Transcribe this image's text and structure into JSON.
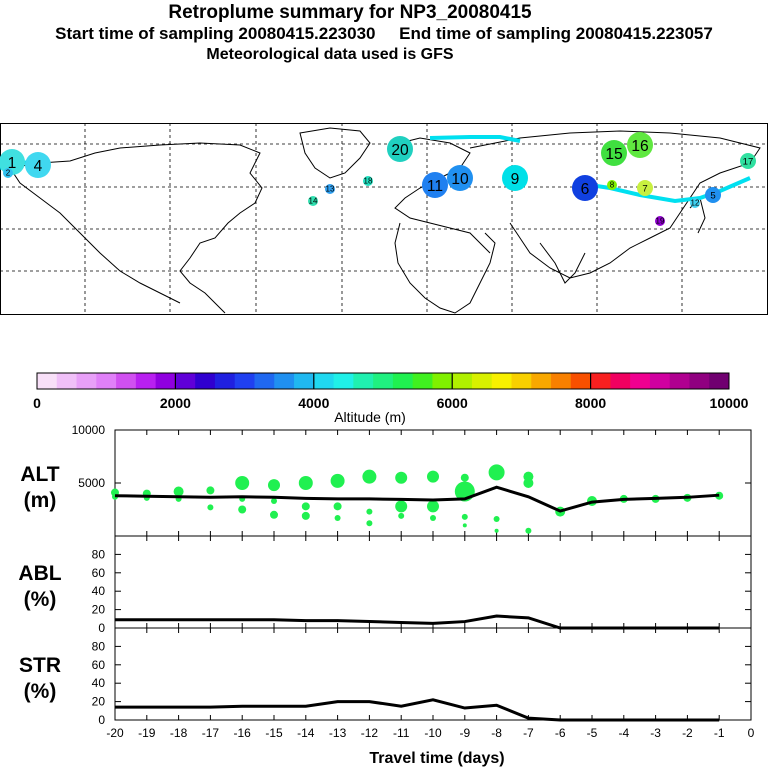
{
  "header": {
    "title": "Retroplume summary for NP3_20080415",
    "start_label": "Start time of sampling 20080415.223030",
    "end_label": "End time of sampling 20080415.223057",
    "met_label": "Meteorological data used is GFS"
  },
  "map": {
    "trajectory_color": "#00e0f0",
    "land_color": "#000000",
    "grid_color": "#000000",
    "markers": [
      {
        "label": "1",
        "size": "large",
        "color": "#40e0e0"
      },
      {
        "label": "2",
        "size": "small",
        "color": "#30c0f0"
      },
      {
        "label": "4",
        "size": "large",
        "color": "#40d8f0"
      },
      {
        "label": "5",
        "size": "medium",
        "color": "#2090f0"
      },
      {
        "label": "6",
        "size": "large",
        "color": "#1040e0"
      },
      {
        "label": "7",
        "size": "medium",
        "color": "#c8f040"
      },
      {
        "label": "8",
        "size": "small",
        "color": "#80f000"
      },
      {
        "label": "9",
        "size": "large",
        "color": "#00e0e8"
      },
      {
        "label": "10",
        "size": "large",
        "color": "#2090f0"
      },
      {
        "label": "11",
        "size": "large",
        "color": "#2080f0"
      },
      {
        "label": "12",
        "size": "small",
        "color": "#40d0f0"
      },
      {
        "label": "13",
        "size": "small",
        "color": "#30a0f0"
      },
      {
        "label": "14",
        "size": "small",
        "color": "#30e0b0"
      },
      {
        "label": "15",
        "size": "large",
        "color": "#40e040"
      },
      {
        "label": "16",
        "size": "large",
        "color": "#60e840"
      },
      {
        "label": "17",
        "size": "medium",
        "color": "#30e0a0"
      },
      {
        "label": "18",
        "size": "small",
        "color": "#20e0c0"
      },
      {
        "label": "19",
        "size": "small",
        "color": "#9000d0"
      },
      {
        "label": "20",
        "size": "large",
        "color": "#20d0c0"
      }
    ]
  },
  "colorbar": {
    "label": "Altitude (m)",
    "ticks": [
      "0",
      "2000",
      "4000",
      "6000",
      "8000",
      "10000"
    ],
    "min": 0,
    "max": 10000,
    "colors": [
      "#f8e0f8",
      "#f0c0f8",
      "#e8a0f8",
      "#e080f8",
      "#d050f0",
      "#b820f0",
      "#9000e0",
      "#6000d8",
      "#3000d0",
      "#2020e0",
      "#2040f0",
      "#2068f0",
      "#2090f0",
      "#20b8f0",
      "#20d8f0",
      "#20f0e8",
      "#20f0b0",
      "#20f080",
      "#20f050",
      "#40f020",
      "#80f000",
      "#b0f000",
      "#d8f000",
      "#f8f000",
      "#f8d000",
      "#f8a800",
      "#f88000",
      "#f85000",
      "#f82020",
      "#f00060",
      "#f00090",
      "#d000a0",
      "#b00090",
      "#900080",
      "#700070"
    ]
  },
  "chart_data": [
    {
      "type": "line",
      "panel_label": "ALT",
      "unit_label": "(m)",
      "ylim": [
        0,
        10000
      ],
      "yticks": [
        "5000",
        "10000"
      ],
      "x": [
        -20,
        -19,
        -18,
        -17,
        -16,
        -15,
        -14,
        -13,
        -12,
        -11,
        -10,
        -9,
        -8,
        -7,
        -6,
        -5,
        -4,
        -3,
        -2,
        -1
      ],
      "series": [
        {
          "name": "mean altitude",
          "color": "#000000",
          "values": [
            3800,
            3750,
            3700,
            3650,
            3700,
            3650,
            3550,
            3500,
            3500,
            3450,
            3400,
            3500,
            4600,
            3700,
            2350,
            3200,
            3450,
            3550,
            3650,
            3850
          ]
        }
      ],
      "scatter": {
        "color": "#20f050",
        "points": [
          {
            "x": -20,
            "y": 4100,
            "s": 4
          },
          {
            "x": -20,
            "y": 3700,
            "s": 3
          },
          {
            "x": -19,
            "y": 4000,
            "s": 4
          },
          {
            "x": -19,
            "y": 3600,
            "s": 3
          },
          {
            "x": -18,
            "y": 4200,
            "s": 5
          },
          {
            "x": -18,
            "y": 3500,
            "s": 3
          },
          {
            "x": -17,
            "y": 4300,
            "s": 4
          },
          {
            "x": -17,
            "y": 2700,
            "s": 3
          },
          {
            "x": -16,
            "y": 5000,
            "s": 7
          },
          {
            "x": -16,
            "y": 3500,
            "s": 3
          },
          {
            "x": -16,
            "y": 2500,
            "s": 4
          },
          {
            "x": -15,
            "y": 4800,
            "s": 6
          },
          {
            "x": -15,
            "y": 3300,
            "s": 3
          },
          {
            "x": -15,
            "y": 2000,
            "s": 4
          },
          {
            "x": -14,
            "y": 5000,
            "s": 7
          },
          {
            "x": -14,
            "y": 2800,
            "s": 4
          },
          {
            "x": -14,
            "y": 1900,
            "s": 4
          },
          {
            "x": -13,
            "y": 5200,
            "s": 7
          },
          {
            "x": -13,
            "y": 2800,
            "s": 4
          },
          {
            "x": -13,
            "y": 1700,
            "s": 3
          },
          {
            "x": -12,
            "y": 5600,
            "s": 7
          },
          {
            "x": -12,
            "y": 2300,
            "s": 3
          },
          {
            "x": -12,
            "y": 1200,
            "s": 3
          },
          {
            "x": -11,
            "y": 5500,
            "s": 6
          },
          {
            "x": -11,
            "y": 2800,
            "s": 6
          },
          {
            "x": -11,
            "y": 1900,
            "s": 3
          },
          {
            "x": -10,
            "y": 5600,
            "s": 6
          },
          {
            "x": -10,
            "y": 2800,
            "s": 6
          },
          {
            "x": -10,
            "y": 1700,
            "s": 3
          },
          {
            "x": -9,
            "y": 5500,
            "s": 4
          },
          {
            "x": -9,
            "y": 4200,
            "s": 10
          },
          {
            "x": -9,
            "y": 1800,
            "s": 3
          },
          {
            "x": -9,
            "y": 1000,
            "s": 2
          },
          {
            "x": -8,
            "y": 6000,
            "s": 8
          },
          {
            "x": -8,
            "y": 1600,
            "s": 3
          },
          {
            "x": -8,
            "y": 500,
            "s": 2
          },
          {
            "x": -7,
            "y": 5600,
            "s": 5
          },
          {
            "x": -7,
            "y": 5000,
            "s": 5
          },
          {
            "x": -7,
            "y": 500,
            "s": 3
          },
          {
            "x": -6,
            "y": 2300,
            "s": 5
          },
          {
            "x": -5,
            "y": 3300,
            "s": 5
          },
          {
            "x": -4,
            "y": 3500,
            "s": 4
          },
          {
            "x": -3,
            "y": 3500,
            "s": 4
          },
          {
            "x": -2,
            "y": 3600,
            "s": 4
          },
          {
            "x": -1,
            "y": 3800,
            "s": 4
          }
        ]
      }
    },
    {
      "type": "line",
      "panel_label": "ABL",
      "unit_label": "(%)",
      "ylim": [
        0,
        100
      ],
      "yticks": [
        "0",
        "20",
        "40",
        "60",
        "80"
      ],
      "x": [
        -20,
        -19,
        -18,
        -17,
        -16,
        -15,
        -14,
        -13,
        -12,
        -11,
        -10,
        -9,
        -8,
        -7,
        -6,
        -5,
        -4,
        -3,
        -2,
        -1
      ],
      "series": [
        {
          "name": "ABL fraction",
          "color": "#000000",
          "values": [
            9,
            9,
            9,
            9,
            9,
            9,
            8,
            8,
            7,
            6,
            5,
            7,
            13,
            11,
            0,
            0,
            0,
            0,
            0,
            0
          ]
        }
      ]
    },
    {
      "type": "line",
      "panel_label": "STR",
      "unit_label": "(%)",
      "ylim": [
        0,
        100
      ],
      "yticks": [
        "0",
        "20",
        "40",
        "60",
        "80"
      ],
      "x": [
        -20,
        -19,
        -18,
        -17,
        -16,
        -15,
        -14,
        -13,
        -12,
        -11,
        -10,
        -9,
        -8,
        -7,
        -6,
        -5,
        -4,
        -3,
        -2,
        -1
      ],
      "series": [
        {
          "name": "stratosphere fraction",
          "color": "#000000",
          "values": [
            14,
            14,
            14,
            14,
            15,
            15,
            15,
            20,
            20,
            15,
            22,
            13,
            16,
            2,
            0,
            0,
            0,
            0,
            0,
            0
          ]
        }
      ],
      "xlabel": "Travel time (days)",
      "xticks": [
        "-20",
        "-19",
        "-18",
        "-17",
        "-16",
        "-15",
        "-14",
        "-13",
        "-12",
        "-11",
        "-10",
        "-9",
        "-8",
        "-7",
        "-6",
        "-5",
        "-4",
        "-3",
        "-2",
        "-1",
        "0"
      ]
    }
  ]
}
